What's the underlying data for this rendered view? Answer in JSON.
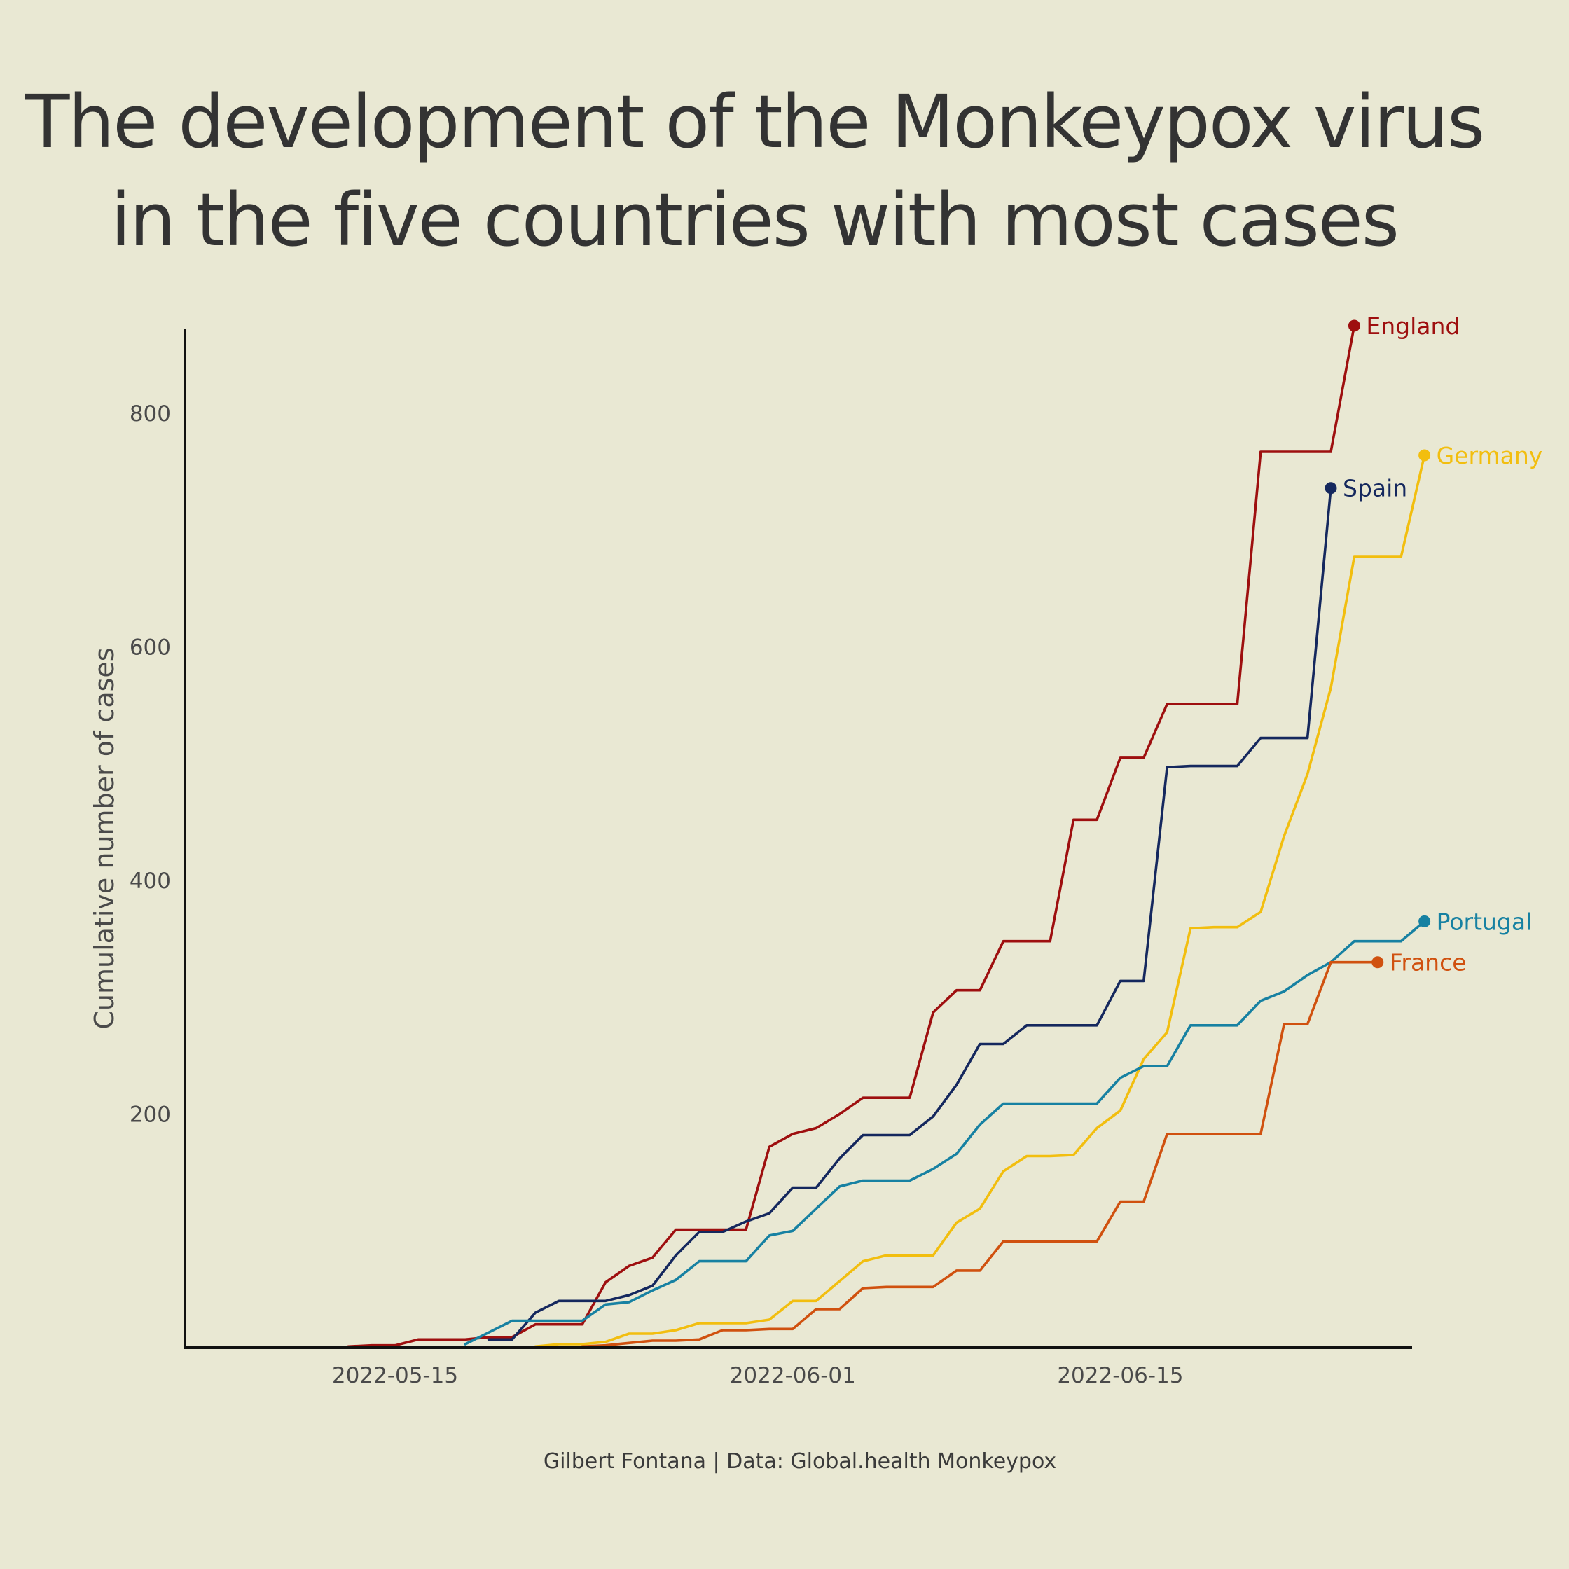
{
  "chart_data": {
    "type": "line",
    "title": [
      "The development of the Monkeypox virus",
      "in the five countries with most cases"
    ],
    "xlabel": "",
    "ylabel": "Cumulative number of cases",
    "caption": "Gilbert Fontana | Data: Global.health Monkeypox",
    "x_ticks": [
      "2022-05-15",
      "2022-06-01",
      "2022-06-15"
    ],
    "y_ticks": [
      "200",
      "400",
      "600",
      "800"
    ],
    "ylim": [
      0,
      875
    ],
    "xlim": [
      "2022-05-08",
      "2022-06-26"
    ],
    "grid": false,
    "legend": "direct labels at line ends",
    "series": [
      {
        "name": "England",
        "color": "#9e0f0f",
        "points": [
          [
            "2022-05-13",
            1
          ],
          [
            "2022-05-14",
            2
          ],
          [
            "2022-05-15",
            2
          ],
          [
            "2022-05-16",
            7
          ],
          [
            "2022-05-17",
            7
          ],
          [
            "2022-05-18",
            7
          ],
          [
            "2022-05-19",
            9
          ],
          [
            "2022-05-20",
            9
          ],
          [
            "2022-05-21",
            20
          ],
          [
            "2022-05-22",
            20
          ],
          [
            "2022-05-23",
            20
          ],
          [
            "2022-05-24",
            56
          ],
          [
            "2022-05-25",
            70
          ],
          [
            "2022-05-26",
            77
          ],
          [
            "2022-05-27",
            101
          ],
          [
            "2022-05-28",
            101
          ],
          [
            "2022-05-29",
            101
          ],
          [
            "2022-05-30",
            101
          ],
          [
            "2022-05-31",
            172
          ],
          [
            "2022-06-01",
            183
          ],
          [
            "2022-06-02",
            188
          ],
          [
            "2022-06-03",
            200
          ],
          [
            "2022-06-04",
            214
          ],
          [
            "2022-06-05",
            214
          ],
          [
            "2022-06-06",
            214
          ],
          [
            "2022-06-07",
            287
          ],
          [
            "2022-06-08",
            306
          ],
          [
            "2022-06-09",
            306
          ],
          [
            "2022-06-10",
            348
          ],
          [
            "2022-06-11",
            348
          ],
          [
            "2022-06-12",
            348
          ],
          [
            "2022-06-13",
            452
          ],
          [
            "2022-06-14",
            452
          ],
          [
            "2022-06-15",
            505
          ],
          [
            "2022-06-16",
            505
          ],
          [
            "2022-06-17",
            551
          ],
          [
            "2022-06-18",
            551
          ],
          [
            "2022-06-19",
            551
          ],
          [
            "2022-06-20",
            551
          ],
          [
            "2022-06-21",
            767
          ],
          [
            "2022-06-22",
            767
          ],
          [
            "2022-06-23",
            767
          ],
          [
            "2022-06-24",
            767
          ],
          [
            "2022-06-25",
            875
          ]
        ]
      },
      {
        "name": "Spain",
        "color": "#15285e",
        "points": [
          [
            "2022-05-19",
            7
          ],
          [
            "2022-05-20",
            7
          ],
          [
            "2022-05-21",
            30
          ],
          [
            "2022-05-22",
            40
          ],
          [
            "2022-05-23",
            40
          ],
          [
            "2022-05-24",
            40
          ],
          [
            "2022-05-25",
            45
          ],
          [
            "2022-05-26",
            53
          ],
          [
            "2022-05-27",
            79
          ],
          [
            "2022-05-28",
            99
          ],
          [
            "2022-05-29",
            99
          ],
          [
            "2022-05-30",
            108
          ],
          [
            "2022-05-31",
            115
          ],
          [
            "2022-06-01",
            137
          ],
          [
            "2022-06-02",
            137
          ],
          [
            "2022-06-03",
            162
          ],
          [
            "2022-06-04",
            182
          ],
          [
            "2022-06-05",
            182
          ],
          [
            "2022-06-06",
            182
          ],
          [
            "2022-06-07",
            198
          ],
          [
            "2022-06-08",
            225
          ],
          [
            "2022-06-09",
            260
          ],
          [
            "2022-06-10",
            260
          ],
          [
            "2022-06-11",
            276
          ],
          [
            "2022-06-12",
            276
          ],
          [
            "2022-06-13",
            276
          ],
          [
            "2022-06-14",
            276
          ],
          [
            "2022-06-15",
            314
          ],
          [
            "2022-06-16",
            314
          ],
          [
            "2022-06-17",
            497
          ],
          [
            "2022-06-18",
            498
          ],
          [
            "2022-06-19",
            498
          ],
          [
            "2022-06-20",
            498
          ],
          [
            "2022-06-21",
            522
          ],
          [
            "2022-06-22",
            522
          ],
          [
            "2022-06-23",
            522
          ],
          [
            "2022-06-24",
            736
          ]
        ]
      },
      {
        "name": "Germany",
        "color": "#f2be0f",
        "points": [
          [
            "2022-05-21",
            1
          ],
          [
            "2022-05-22",
            3
          ],
          [
            "2022-05-23",
            3
          ],
          [
            "2022-05-24",
            5
          ],
          [
            "2022-05-25",
            12
          ],
          [
            "2022-05-26",
            12
          ],
          [
            "2022-05-27",
            15
          ],
          [
            "2022-05-28",
            21
          ],
          [
            "2022-05-29",
            21
          ],
          [
            "2022-05-30",
            21
          ],
          [
            "2022-05-31",
            24
          ],
          [
            "2022-06-01",
            40
          ],
          [
            "2022-06-02",
            40
          ],
          [
            "2022-06-03",
            57
          ],
          [
            "2022-06-04",
            74
          ],
          [
            "2022-06-05",
            79
          ],
          [
            "2022-06-06",
            79
          ],
          [
            "2022-06-07",
            79
          ],
          [
            "2022-06-08",
            107
          ],
          [
            "2022-06-09",
            119
          ],
          [
            "2022-06-10",
            151
          ],
          [
            "2022-06-11",
            164
          ],
          [
            "2022-06-12",
            164
          ],
          [
            "2022-06-13",
            165
          ],
          [
            "2022-06-14",
            188
          ],
          [
            "2022-06-15",
            203
          ],
          [
            "2022-06-16",
            247
          ],
          [
            "2022-06-17",
            270
          ],
          [
            "2022-06-18",
            359
          ],
          [
            "2022-06-19",
            360
          ],
          [
            "2022-06-20",
            360
          ],
          [
            "2022-06-21",
            373
          ],
          [
            "2022-06-22",
            438
          ],
          [
            "2022-06-23",
            491
          ],
          [
            "2022-06-24",
            565
          ],
          [
            "2022-06-25",
            677
          ],
          [
            "2022-06-26",
            677
          ],
          [
            "2022-06-27",
            677
          ],
          [
            "2022-06-28",
            764
          ]
        ]
      },
      {
        "name": "Portugal",
        "color": "#1781a2",
        "points": [
          [
            "2022-05-18",
            3
          ],
          [
            "2022-05-19",
            13
          ],
          [
            "2022-05-20",
            23
          ],
          [
            "2022-05-21",
            23
          ],
          [
            "2022-05-22",
            23
          ],
          [
            "2022-05-23",
            23
          ],
          [
            "2022-05-24",
            37
          ],
          [
            "2022-05-25",
            39
          ],
          [
            "2022-05-26",
            49
          ],
          [
            "2022-05-27",
            58
          ],
          [
            "2022-05-28",
            74
          ],
          [
            "2022-05-29",
            74
          ],
          [
            "2022-05-30",
            74
          ],
          [
            "2022-05-31",
            96
          ],
          [
            "2022-06-01",
            100
          ],
          [
            "2022-06-02",
            119
          ],
          [
            "2022-06-03",
            138
          ],
          [
            "2022-06-04",
            143
          ],
          [
            "2022-06-05",
            143
          ],
          [
            "2022-06-06",
            143
          ],
          [
            "2022-06-07",
            153
          ],
          [
            "2022-06-08",
            166
          ],
          [
            "2022-06-09",
            191
          ],
          [
            "2022-06-10",
            209
          ],
          [
            "2022-06-11",
            209
          ],
          [
            "2022-06-12",
            209
          ],
          [
            "2022-06-13",
            209
          ],
          [
            "2022-06-14",
            209
          ],
          [
            "2022-06-15",
            231
          ],
          [
            "2022-06-16",
            241
          ],
          [
            "2022-06-17",
            241
          ],
          [
            "2022-06-18",
            276
          ],
          [
            "2022-06-19",
            276
          ],
          [
            "2022-06-20",
            276
          ],
          [
            "2022-06-21",
            297
          ],
          [
            "2022-06-22",
            305
          ],
          [
            "2022-06-23",
            319
          ],
          [
            "2022-06-24",
            330
          ],
          [
            "2022-06-25",
            348
          ],
          [
            "2022-06-26",
            348
          ],
          [
            "2022-06-27",
            348
          ],
          [
            "2022-06-28",
            365
          ]
        ]
      },
      {
        "name": "France",
        "color": "#d0510f",
        "points": [
          [
            "2022-05-23",
            1
          ],
          [
            "2022-05-24",
            2
          ],
          [
            "2022-05-25",
            4
          ],
          [
            "2022-05-26",
            6
          ],
          [
            "2022-05-27",
            6
          ],
          [
            "2022-05-28",
            7
          ],
          [
            "2022-05-29",
            15
          ],
          [
            "2022-05-30",
            15
          ],
          [
            "2022-05-31",
            16
          ],
          [
            "2022-06-01",
            16
          ],
          [
            "2022-06-02",
            33
          ],
          [
            "2022-06-03",
            33
          ],
          [
            "2022-06-04",
            51
          ],
          [
            "2022-06-05",
            52
          ],
          [
            "2022-06-06",
            52
          ],
          [
            "2022-06-07",
            52
          ],
          [
            "2022-06-08",
            66
          ],
          [
            "2022-06-09",
            66
          ],
          [
            "2022-06-10",
            91
          ],
          [
            "2022-06-11",
            91
          ],
          [
            "2022-06-12",
            91
          ],
          [
            "2022-06-13",
            91
          ],
          [
            "2022-06-14",
            91
          ],
          [
            "2022-06-15",
            125
          ],
          [
            "2022-06-16",
            125
          ],
          [
            "2022-06-17",
            183
          ],
          [
            "2022-06-18",
            183
          ],
          [
            "2022-06-19",
            183
          ],
          [
            "2022-06-20",
            183
          ],
          [
            "2022-06-21",
            183
          ],
          [
            "2022-06-22",
            277
          ],
          [
            "2022-06-23",
            277
          ],
          [
            "2022-06-24",
            330
          ],
          [
            "2022-06-25",
            330
          ],
          [
            "2022-06-26",
            330
          ]
        ]
      }
    ]
  }
}
